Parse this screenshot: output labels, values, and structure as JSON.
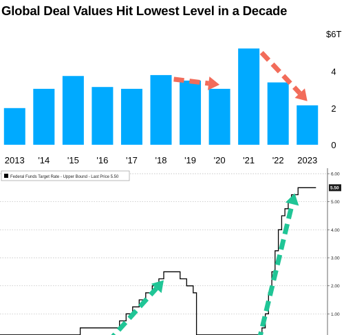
{
  "chart_data": [
    {
      "type": "bar",
      "title": "Global Deal Values Hit Lowest Level in a Decade",
      "categories": [
        "2013",
        "'14",
        "'15",
        "'16",
        "'17",
        "'18",
        "'19",
        "'20",
        "'21",
        "'22",
        "2023"
      ],
      "values": [
        2.0,
        3.05,
        3.75,
        3.15,
        3.05,
        3.8,
        3.5,
        3.05,
        5.25,
        3.4,
        2.15
      ],
      "y_unit_label": "$6T",
      "y_ticks": [
        "4",
        "2",
        "0"
      ],
      "ylim": [
        0,
        6
      ],
      "bar_color": "#00aaff",
      "arrow_color": "#f26c5a",
      "arrows": [
        {
          "from_category": "'18",
          "to_category": "'20",
          "direction": "down"
        },
        {
          "from_category": "'21",
          "to_category": "2023",
          "direction": "down"
        }
      ],
      "grid": false
    },
    {
      "type": "line",
      "legend": "Federal Funds Target Rate - Upper Bound - Last Price 5.50",
      "legend_position": "top-left",
      "last_value_label": "5.50",
      "y_ticks": [
        "6.00",
        "5.00",
        "4.00",
        "3.00",
        "2.00",
        "1.00"
      ],
      "ylim": [
        0,
        6.0
      ],
      "xlim": [
        0,
        100
      ],
      "line_color": "#000000",
      "arrow_color": "#20c596",
      "grid": "dotted",
      "series": [
        {
          "points": [
            [
              0,
              0.25
            ],
            [
              24.5,
              0.25
            ],
            [
              24.5,
              0.5
            ],
            [
              36.5,
              0.5
            ],
            [
              36.5,
              0.75
            ],
            [
              38.5,
              0.75
            ],
            [
              38.5,
              1.0
            ],
            [
              40.5,
              1.0
            ],
            [
              40.5,
              1.25
            ],
            [
              42.5,
              1.25
            ],
            [
              42.5,
              1.5
            ],
            [
              44.5,
              1.5
            ],
            [
              44.5,
              1.75
            ],
            [
              46.5,
              1.75
            ],
            [
              46.5,
              2.0
            ],
            [
              48.5,
              2.0
            ],
            [
              48.5,
              2.25
            ],
            [
              50.0,
              2.25
            ],
            [
              50.0,
              2.5
            ],
            [
              55.0,
              2.5
            ],
            [
              55.0,
              2.25
            ],
            [
              57.0,
              2.25
            ],
            [
              57.0,
              2.0
            ],
            [
              59.0,
              2.0
            ],
            [
              59.0,
              1.75
            ],
            [
              60.0,
              1.75
            ],
            [
              60.0,
              0.25
            ],
            [
              80.0,
              0.25
            ],
            [
              80.0,
              0.5
            ],
            [
              81.0,
              0.5
            ],
            [
              81.0,
              1.0
            ],
            [
              82.0,
              1.0
            ],
            [
              82.0,
              1.75
            ],
            [
              83.0,
              1.75
            ],
            [
              83.0,
              2.5
            ],
            [
              84.0,
              2.5
            ],
            [
              84.0,
              3.25
            ],
            [
              85.0,
              3.25
            ],
            [
              85.0,
              4.0
            ],
            [
              86.0,
              4.0
            ],
            [
              86.0,
              4.5
            ],
            [
              87.0,
              4.5
            ],
            [
              87.0,
              4.75
            ],
            [
              88.0,
              4.75
            ],
            [
              88.0,
              5.0
            ],
            [
              89.0,
              5.0
            ],
            [
              89.0,
              5.25
            ],
            [
              91.0,
              5.25
            ],
            [
              91.0,
              5.5
            ],
            [
              96.5,
              5.5
            ]
          ]
        }
      ],
      "arrows": [
        {
          "from": [
            33.0,
            0.0
          ],
          "to": [
            50.0,
            2.2
          ]
        },
        {
          "from": [
            79.0,
            0.0
          ],
          "to": [
            90.0,
            5.3
          ]
        }
      ]
    }
  ]
}
